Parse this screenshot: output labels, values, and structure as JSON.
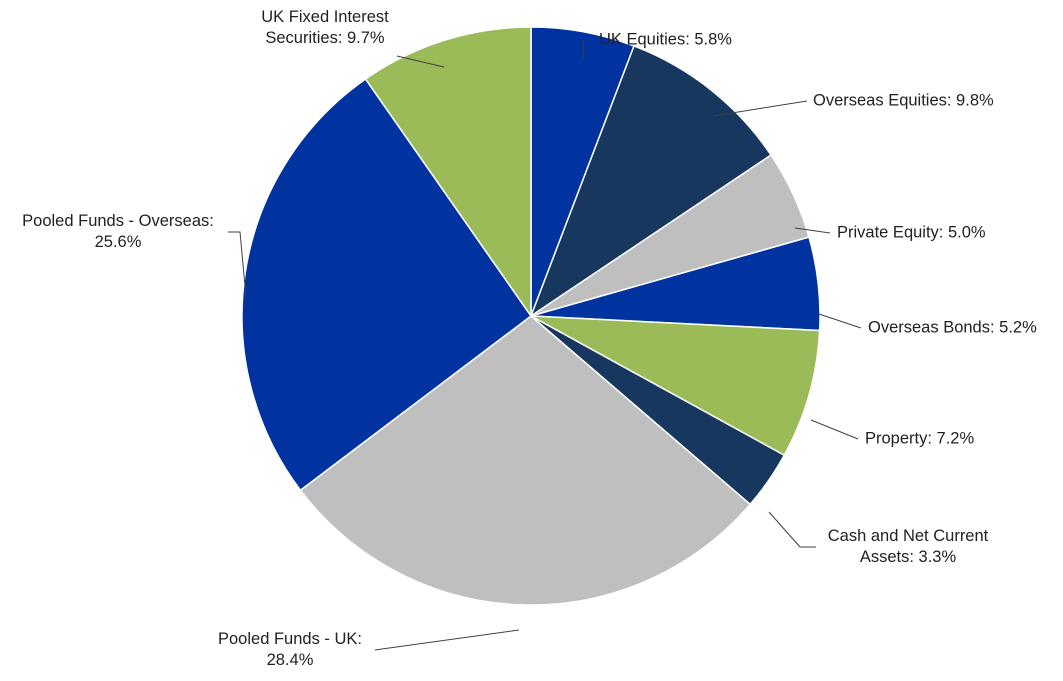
{
  "chart_data": {
    "type": "pie",
    "title": "",
    "unit": "%",
    "start": "top, clockwise",
    "slices": [
      {
        "name": "UK Equities",
        "value": 5.8,
        "color": "#0033A0",
        "label_lines": [
          "UK Equities: 5.8%"
        ]
      },
      {
        "name": "Overseas Equities",
        "value": 9.8,
        "color": "#17375E",
        "label_lines": [
          "Overseas Equities: 9.8%"
        ]
      },
      {
        "name": "Private Equity",
        "value": 5.0,
        "color": "#BFBFBF",
        "label_lines": [
          "Private Equity: 5.0%"
        ]
      },
      {
        "name": "Overseas Bonds",
        "value": 5.2,
        "color": "#0033A0",
        "label_lines": [
          "Overseas Bonds: 5.2%"
        ]
      },
      {
        "name": "Property",
        "value": 7.2,
        "color": "#9BBB59",
        "label_lines": [
          "Property: 7.2%"
        ]
      },
      {
        "name": "Cash and Net Current Assets",
        "value": 3.3,
        "color": "#17375E",
        "label_lines": [
          "Cash and Net Current",
          "Assets: 3.3%"
        ]
      },
      {
        "name": "Pooled Funds - UK",
        "value": 28.4,
        "color": "#BFBFBF",
        "label_lines": [
          "Pooled Funds - UK:",
          "28.4%"
        ]
      },
      {
        "name": "Pooled Funds - Overseas",
        "value": 25.6,
        "color": "#0033A0",
        "label_lines": [
          "Pooled Funds - Overseas:",
          "25.6%"
        ]
      },
      {
        "name": "UK Fixed Interest Securities",
        "value": 9.7,
        "color": "#9BBB59",
        "label_lines": [
          "UK Fixed Interest",
          "Securities: 9.7%"
        ]
      }
    ]
  }
}
